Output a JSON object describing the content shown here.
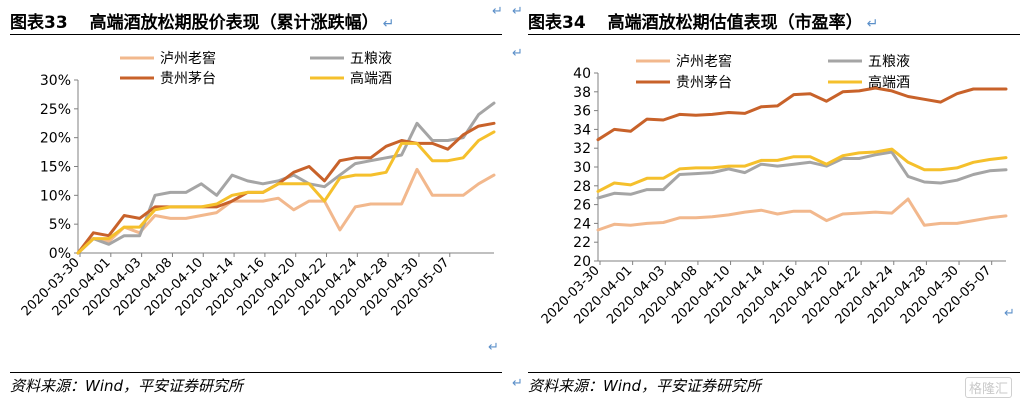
{
  "return_mark": "↵",
  "watermark": "格隆汇",
  "panels": [
    {
      "figure_no": "图表33",
      "title": "高端酒放松期股价表现（累计涨跌幅）",
      "source": "资料来源：Wind，平安证券研究所"
    },
    {
      "figure_no": "图表34",
      "title": "高端酒放松期估值表现（市盈率）",
      "source": "资料来源：Wind，平安证券研究所"
    }
  ],
  "chart_data": [
    {
      "type": "line",
      "title": "高端酒放松期股价表现（累计涨跌幅）",
      "xlabel": "",
      "ylabel": "",
      "ylim": [
        0,
        30
      ],
      "y_tick_labels": [
        "0%",
        "5%",
        "10%",
        "15%",
        "20%",
        "25%",
        "30%"
      ],
      "x_tick_labels": [
        "2020-03-30",
        "2020-04-01",
        "2020-04-03",
        "2020-04-08",
        "2020-04-10",
        "2020-04-14",
        "2020-04-16",
        "2020-04-20",
        "2020-04-22",
        "2020-04-24",
        "2020-04-28",
        "2020-04-30",
        "2020-05-07"
      ],
      "grid": false,
      "legend": "top",
      "colors": {
        "泸州老窖": "#f2b88d",
        "五粮液": "#a5a5a5",
        "贵州茅台": "#c8622a",
        "高端酒": "#f5c02c"
      },
      "series": [
        {
          "name": "泸州老窖",
          "values": [
            0,
            2.5,
            2,
            4.5,
            3.5,
            6.5,
            6,
            6,
            6.5,
            7,
            9,
            9,
            9,
            9.5,
            7.5,
            9,
            9,
            4,
            8,
            8.5,
            8.5,
            8.5,
            14.5,
            10,
            10,
            10,
            12,
            13.5
          ]
        },
        {
          "name": "五粮液",
          "values": [
            0,
            2.5,
            1.5,
            3,
            3,
            10,
            10.5,
            10.5,
            12,
            10,
            13.5,
            12.5,
            12,
            12.5,
            13.5,
            12,
            11.5,
            13.5,
            15.5,
            16,
            16.5,
            17,
            22.5,
            19.5,
            19.5,
            20,
            24,
            26
          ]
        },
        {
          "name": "贵州茅台",
          "values": [
            0,
            3.5,
            3,
            6.5,
            6,
            8,
            8,
            8,
            8,
            8,
            9,
            10.5,
            10.5,
            12,
            14,
            15,
            12.5,
            16,
            16.5,
            16.5,
            18.5,
            19.5,
            19,
            19,
            18,
            20.5,
            22,
            22.5
          ]
        },
        {
          "name": "高端酒",
          "values": [
            0,
            2.5,
            2.5,
            4.5,
            4.5,
            7.5,
            8,
            8,
            8,
            8.5,
            10,
            10.5,
            10.5,
            12,
            12,
            12,
            9,
            13,
            13.5,
            13.5,
            14,
            19,
            19,
            16,
            16,
            16.5,
            19.5,
            21
          ]
        }
      ]
    },
    {
      "type": "line",
      "title": "高端酒放松期估值表现（市盈率）",
      "xlabel": "",
      "ylabel": "",
      "ylim": [
        20,
        40
      ],
      "y_tick_labels": [
        "20",
        "22",
        "24",
        "26",
        "28",
        "30",
        "32",
        "34",
        "36",
        "38",
        "40"
      ],
      "x_tick_labels": [
        "2020-03-30",
        "2020-04-01",
        "2020-04-03",
        "2020-04-08",
        "2020-04-10",
        "2020-04-14",
        "2020-04-16",
        "2020-04-20",
        "2020-04-22",
        "2020-04-24",
        "2020-04-28",
        "2020-04-30",
        "2020-05-07"
      ],
      "grid": false,
      "legend": "top",
      "colors": {
        "泸州老窖": "#f2b88d",
        "五粮液": "#a5a5a5",
        "贵州茅台": "#c8622a",
        "高端酒": "#f5c02c"
      },
      "series": [
        {
          "name": "泸州老窖",
          "values": [
            23.3,
            23.9,
            23.8,
            24,
            24.1,
            24.6,
            24.6,
            24.7,
            24.9,
            25.2,
            25.4,
            25,
            25.3,
            25.3,
            24.3,
            25,
            25.1,
            25.2,
            25.1,
            26.6,
            23.8,
            24,
            24,
            24.3,
            24.6,
            24.8
          ]
        },
        {
          "name": "五粮液",
          "values": [
            26.7,
            27.2,
            27.1,
            27.6,
            27.6,
            29.2,
            29.3,
            29.4,
            29.8,
            29.4,
            30.3,
            30.1,
            30.3,
            30.5,
            30.1,
            30.9,
            30.9,
            31.3,
            31.6,
            29,
            28.4,
            28.3,
            28.6,
            29.2,
            29.6,
            29.7
          ]
        },
        {
          "name": "贵州茅台",
          "values": [
            32.9,
            34,
            33.8,
            35.1,
            35,
            35.6,
            35.5,
            35.6,
            35.8,
            35.7,
            36.4,
            36.5,
            37.7,
            37.8,
            37,
            38,
            38.1,
            38.4,
            38.1,
            37.5,
            37.2,
            36.9,
            37.8,
            38.3,
            38.3,
            38.3
          ]
        },
        {
          "name": "高端酒",
          "values": [
            27.4,
            28.3,
            28.1,
            28.8,
            28.8,
            29.8,
            29.9,
            29.9,
            30.1,
            30.1,
            30.7,
            30.7,
            31.1,
            31.1,
            30.3,
            31.2,
            31.5,
            31.6,
            31.9,
            30.5,
            29.7,
            29.7,
            29.9,
            30.5,
            30.8,
            31
          ]
        }
      ]
    }
  ]
}
